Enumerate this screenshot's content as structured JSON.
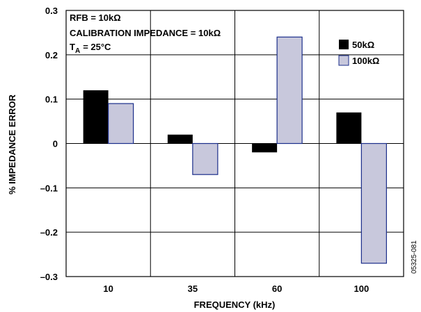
{
  "chart_data": {
    "type": "bar",
    "xlabel": "FREQUENCY (kHz)",
    "ylabel": "% IMPEDANCE ERROR",
    "categories": [
      "10",
      "35",
      "60",
      "100"
    ],
    "ylim": [
      -0.3,
      0.3
    ],
    "yticks": [
      "0.3",
      "0.2",
      "0.1",
      "0",
      "–0.1",
      "–0.2",
      "–0.3"
    ],
    "grid": true,
    "legend_position": "top-right",
    "series": [
      {
        "name": "50kΩ",
        "color": "#000000",
        "values": [
          0.12,
          0.02,
          -0.02,
          0.07
        ]
      },
      {
        "name": "100kΩ",
        "color": "#c8c8dc",
        "stroke": "#1a2d8a",
        "values": [
          0.09,
          -0.07,
          0.24,
          -0.27
        ]
      }
    ],
    "annotations": [
      "RFB = 10kΩ",
      "CALIBRATION IMPEDANCE = 10kΩ",
      "T",
      "A",
      "= 25°C"
    ],
    "figure_code": "05325-081"
  }
}
